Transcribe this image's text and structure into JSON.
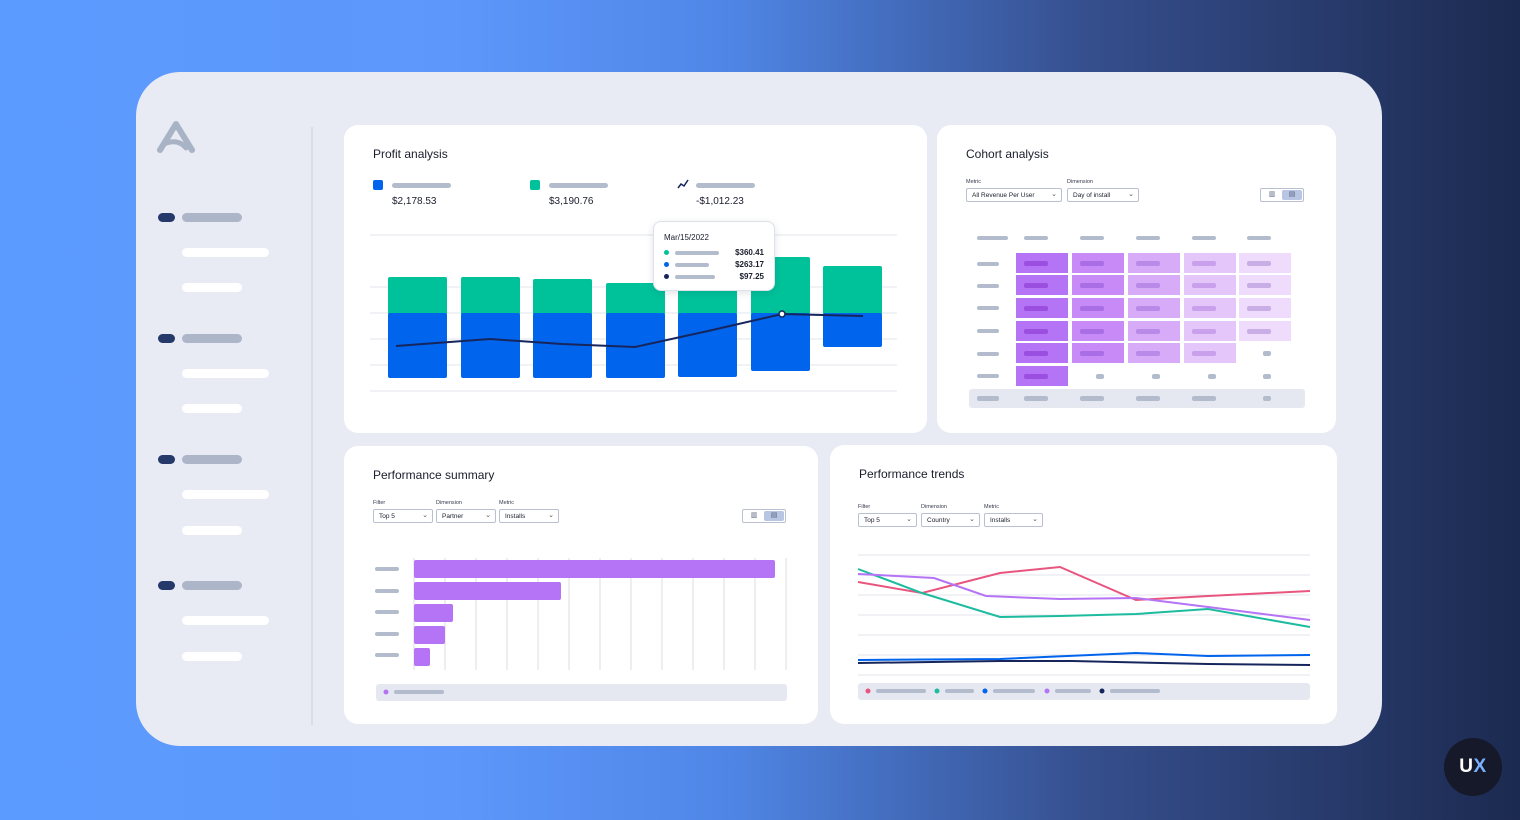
{
  "profit": {
    "title": "Profit analysis",
    "legend": [
      {
        "value": "$2,178.53",
        "color": "#0064ed"
      },
      {
        "value": "$3,190.76",
        "color": "#00c29a"
      },
      {
        "value": "-$1,012.23",
        "icon": "trend-line-icon"
      }
    ],
    "tooltip": {
      "date": "Mar/15/2022",
      "rows": [
        {
          "value": "$360.41",
          "color": "#00c29a"
        },
        {
          "value": "$263.17",
          "color": "#0064ed"
        },
        {
          "value": "$97.25",
          "color": "#16265c"
        }
      ]
    }
  },
  "cohort": {
    "title": "Cohort analysis",
    "metric_label": "Metric",
    "metric_value": "All Revenue Per User",
    "dimension_label": "Dimension",
    "dimension_value": "Day of install"
  },
  "summary": {
    "title": "Performance summary",
    "filter_label": "Filter",
    "filter_value": "Top 5",
    "dimension_label": "Dimension",
    "dimension_value": "Partner",
    "metric_label": "Metric",
    "metric_value": "Installs"
  },
  "trends": {
    "title": "Performance trends",
    "filter_label": "Filter",
    "filter_value": "Top 5",
    "dimension_label": "Dimension",
    "dimension_value": "Country",
    "metric_label": "Metric",
    "metric_value": "Installs"
  },
  "badge": {
    "u": "U",
    "x": "X"
  },
  "colors": {
    "blue": "#0064ed",
    "teal": "#00c29a",
    "navy": "#16265c",
    "purple": "#b574f5",
    "pink": "#e8557f"
  }
}
